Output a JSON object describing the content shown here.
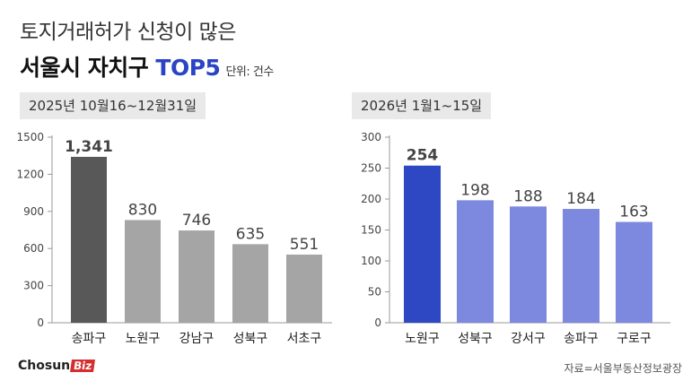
{
  "header": {
    "title_line1": "토지거래허가 신청이 많은",
    "title_line2_prefix": "서울시 자치구 ",
    "title_line2_highlight": "TOP5",
    "unit": "단위: 건수"
  },
  "footer": {
    "logo_main": "Chosun",
    "logo_badge": "Biz",
    "source": "자료=서울부동산정보광장"
  },
  "colors": {
    "highlight_left": "#585858",
    "bar_left": "#a5a5a5",
    "highlight_right": "#2e47c2",
    "bar_right": "#7d89de",
    "value_highlight_left": "#333333",
    "value_highlight_right": "#2e47c2",
    "value_left": "#444444",
    "value_right": "#7d89de"
  },
  "chart_data": [
    {
      "type": "bar",
      "period": "2025년 10월16~12월31일",
      "categories": [
        "송파구",
        "노원구",
        "강남구",
        "성북구",
        "서초구"
      ],
      "values": [
        1341,
        830,
        746,
        635,
        551
      ],
      "value_labels": [
        "1,341",
        "830",
        "746",
        "635",
        "551"
      ],
      "ylim": [
        0,
        1500
      ],
      "yticks": [
        0,
        300,
        600,
        900,
        1200,
        1500
      ],
      "highlight_index": 0,
      "grid": false
    },
    {
      "type": "bar",
      "period": "2026년 1월1~15일",
      "categories": [
        "노원구",
        "성북구",
        "강서구",
        "송파구",
        "구로구"
      ],
      "values": [
        254,
        198,
        188,
        184,
        163
      ],
      "value_labels": [
        "254",
        "198",
        "188",
        "184",
        "163"
      ],
      "ylim": [
        0,
        300
      ],
      "yticks": [
        0,
        50,
        100,
        150,
        200,
        250,
        300
      ],
      "highlight_index": 0,
      "grid": false
    }
  ]
}
